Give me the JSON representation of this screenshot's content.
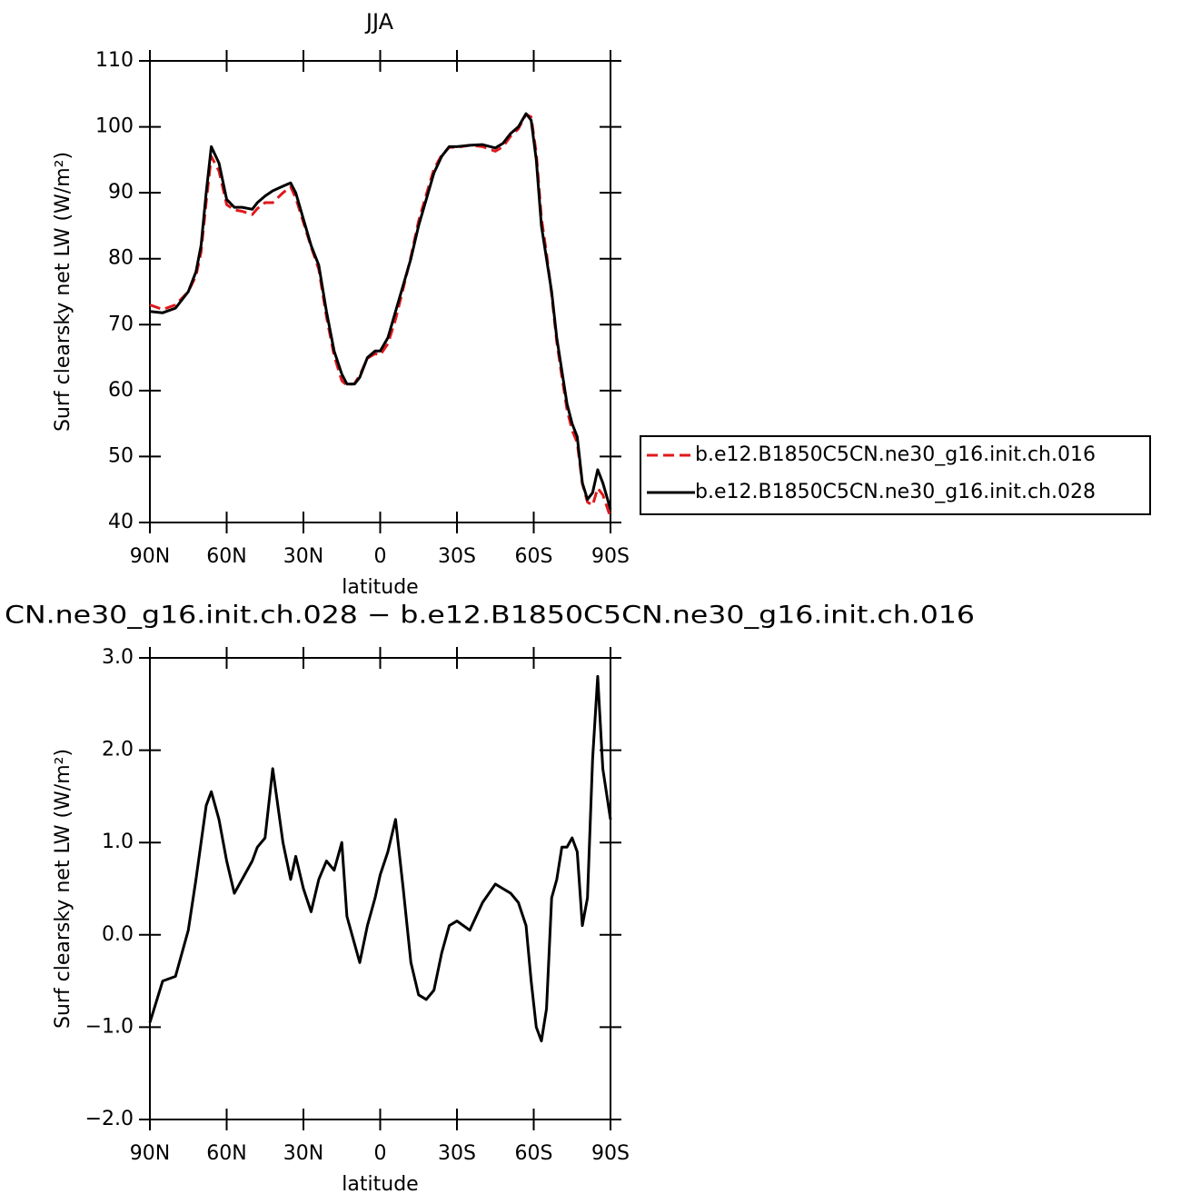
{
  "chart_data": [
    {
      "type": "line",
      "title": "JJA",
      "x_label": "latitude",
      "y_label": "Surf clearsky net LW (W/m²)",
      "x": [
        90,
        85,
        80,
        75,
        72,
        70,
        68,
        66,
        63,
        60,
        57,
        54,
        50,
        48,
        45,
        42,
        38,
        35,
        33,
        30,
        27,
        24,
        21,
        18,
        15,
        13,
        10,
        8,
        5,
        2,
        0,
        -3,
        -6,
        -9,
        -12,
        -15,
        -18,
        -21,
        -24,
        -27,
        -30,
        -35,
        -40,
        -45,
        -48,
        -51,
        -54,
        -57,
        -59,
        -61,
        -63,
        -65,
        -67,
        -69,
        -71,
        -73,
        -75,
        -77,
        -79,
        -81,
        -83,
        -85,
        -87,
        -90
      ],
      "series": [
        {
          "name": "b.e12.B1850C5CN.ne30_g16.init.ch.016",
          "color": "#e0191d",
          "dashed": true,
          "values": [
            73.0,
            72.3,
            73.0,
            75.0,
            77.4,
            81.0,
            88.6,
            95.5,
            93.3,
            88.2,
            87.4,
            87.2,
            86.7,
            87.6,
            88.5,
            88.5,
            90.0,
            90.9,
            89.2,
            85.5,
            81.8,
            78.4,
            71.2,
            65.3,
            61.5,
            60.8,
            61.1,
            62.3,
            64.9,
            65.6,
            65.4,
            67.1,
            70.8,
            75.5,
            80.3,
            85.7,
            89.7,
            93.6,
            95.7,
            96.9,
            96.9,
            97.2,
            97.0,
            96.3,
            97.0,
            98.6,
            99.7,
            101.9,
            101.5,
            96.0,
            86.2,
            80.8,
            74.6,
            67.4,
            62.1,
            57.1,
            54.0,
            52.1,
            45.9,
            43.1,
            42.6,
            45.2,
            44.2,
            40.8
          ]
        },
        {
          "name": "b.e12.B1850C5CN.ne30_g16.init.ch.028",
          "color": "#000000",
          "dashed": false,
          "values": [
            72.0,
            71.8,
            72.5,
            75.0,
            78.0,
            82.0,
            90.0,
            97.0,
            94.5,
            89.0,
            87.8,
            87.8,
            87.5,
            88.5,
            89.5,
            90.3,
            91.0,
            91.5,
            90.0,
            86.0,
            82.0,
            79.0,
            72.0,
            66.0,
            62.5,
            61.0,
            61.0,
            62.0,
            65.0,
            66.0,
            66.0,
            68.0,
            72.0,
            76.0,
            80.0,
            85.0,
            89.0,
            93.0,
            95.5,
            97.0,
            97.0,
            97.2,
            97.3,
            96.8,
            97.5,
            99.0,
            100.0,
            102.0,
            101.0,
            95.0,
            85.0,
            80.0,
            75.0,
            68.0,
            63.0,
            58.0,
            55.0,
            53.0,
            46.0,
            43.5,
            44.5,
            48.0,
            46.0,
            42.0
          ]
        }
      ],
      "xlim": [
        90,
        -90
      ],
      "xticks": [
        {
          "value": 90,
          "label": "90N"
        },
        {
          "value": 60,
          "label": "60N"
        },
        {
          "value": 30,
          "label": "30N"
        },
        0,
        {
          "value": -30,
          "label": "30S"
        },
        {
          "value": -60,
          "label": "60S"
        },
        {
          "value": -90,
          "label": "90S"
        }
      ],
      "ylim": [
        40,
        110
      ],
      "yticks": [
        40,
        50,
        60,
        70,
        80,
        90,
        100,
        110
      ],
      "legend": "right"
    },
    {
      "type": "line",
      "title": "CN.ne30_g16.init.ch.028 − b.e12.B1850C5CN.ne30_g16.init.ch.016",
      "x_label": "latitude",
      "y_label": "Surf clearsky net LW (W/m²)",
      "x": [
        90,
        85,
        80,
        75,
        72,
        70,
        68,
        66,
        63,
        60,
        57,
        54,
        50,
        48,
        45,
        42,
        38,
        35,
        33,
        30,
        27,
        24,
        21,
        18,
        15,
        13,
        10,
        8,
        5,
        2,
        0,
        -3,
        -6,
        -9,
        -12,
        -15,
        -18,
        -21,
        -24,
        -27,
        -30,
        -35,
        -40,
        -45,
        -48,
        -51,
        -54,
        -57,
        -59,
        -61,
        -63,
        -65,
        -67,
        -69,
        -71,
        -73,
        -75,
        -77,
        -79,
        -81,
        -83,
        -85,
        -87,
        -90
      ],
      "values": [
        -0.95,
        -0.5,
        -0.45,
        0.05,
        0.6,
        1.0,
        1.4,
        1.55,
        1.25,
        0.8,
        0.45,
        0.6,
        0.8,
        0.95,
        1.05,
        1.8,
        1.0,
        0.6,
        0.85,
        0.5,
        0.25,
        0.6,
        0.8,
        0.7,
        1.0,
        0.2,
        -0.1,
        -0.3,
        0.1,
        0.4,
        0.65,
        0.9,
        1.25,
        0.5,
        -0.3,
        -0.65,
        -0.7,
        -0.6,
        -0.2,
        0.1,
        0.15,
        0.05,
        0.35,
        0.55,
        0.5,
        0.45,
        0.35,
        0.1,
        -0.5,
        -1.0,
        -1.15,
        -0.8,
        0.4,
        0.6,
        0.95,
        0.95,
        1.05,
        0.9,
        0.1,
        0.4,
        1.9,
        2.8,
        1.8,
        1.25
      ],
      "color": "#000000",
      "xlim": [
        90,
        -90
      ],
      "xticks": [
        {
          "value": 90,
          "label": "90N"
        },
        {
          "value": 60,
          "label": "60N"
        },
        {
          "value": 30,
          "label": "30N"
        },
        0,
        {
          "value": -30,
          "label": "30S"
        },
        {
          "value": -60,
          "label": "60S"
        },
        {
          "value": -90,
          "label": "90S"
        }
      ],
      "ylim": [
        -2,
        3
      ],
      "yticks": [
        {
          "value": -2,
          "label": "−2.0"
        },
        {
          "value": -1,
          "label": "−1.0"
        },
        {
          "value": 0,
          "label": "0.0"
        },
        {
          "value": 1,
          "label": "1.0"
        },
        {
          "value": 2,
          "label": "2.0"
        },
        {
          "value": 3,
          "label": "3.0"
        }
      ]
    }
  ]
}
